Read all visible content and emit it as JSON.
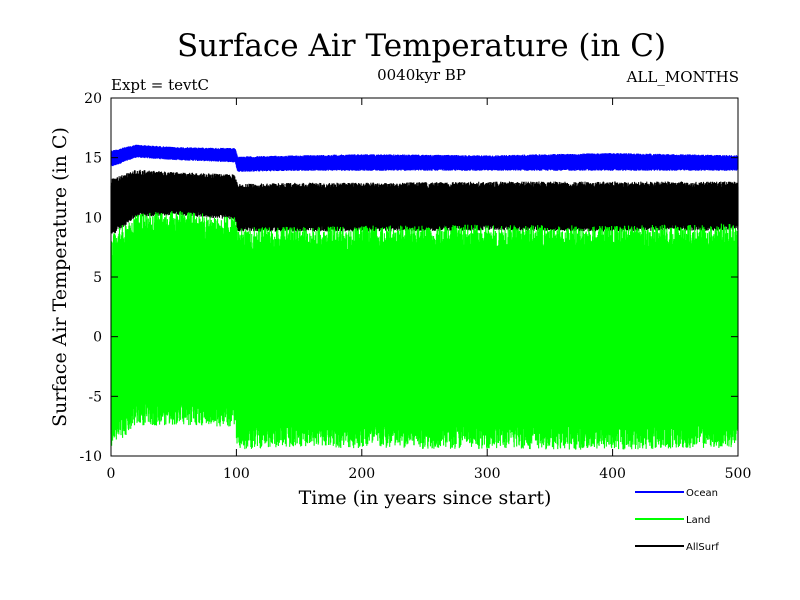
{
  "header": {
    "title": "Surface Air Temperature (in C)",
    "subtitle": "0040kyr BP",
    "expt": "Expt = tevtC",
    "months": "ALL_MONTHS"
  },
  "chart_data": {
    "type": "line",
    "title": "Surface Air Temperature (in C)",
    "xlabel": "Time (in years since start)",
    "ylabel": "Surface Air Temperature (in C)",
    "xlim": [
      0,
      500
    ],
    "ylim": [
      -10,
      20
    ],
    "xticks": [
      0,
      100,
      200,
      300,
      400,
      500
    ],
    "yticks": [
      -10,
      -5,
      0,
      5,
      10,
      15,
      20
    ],
    "grid": false,
    "legend_position": "bottom-right, outside plot",
    "series": [
      {
        "name": "Ocean",
        "color": "#0000ff",
        "x": [
          0,
          20,
          50,
          99,
          101,
          150,
          200,
          300,
          400,
          500
        ],
        "min": [
          14.2,
          15.0,
          14.8,
          14.6,
          13.8,
          13.9,
          13.9,
          13.9,
          13.9,
          13.9
        ],
        "max": [
          15.6,
          16.1,
          15.9,
          15.8,
          15.1,
          15.2,
          15.3,
          15.2,
          15.4,
          15.2
        ]
      },
      {
        "name": "Land",
        "color": "#00ff00",
        "x": [
          0,
          20,
          50,
          99,
          101,
          150,
          200,
          300,
          400,
          500
        ],
        "min": [
          -9.4,
          -7.5,
          -7.4,
          -7.6,
          -9.5,
          -9.2,
          -9.4,
          -9.4,
          -9.5,
          -9.3
        ],
        "max": [
          8.6,
          10.3,
          10.6,
          10.0,
          9.2,
          9.2,
          9.3,
          9.4,
          9.3,
          9.5
        ]
      },
      {
        "name": "AllSurf",
        "color": "#000000",
        "x": [
          0,
          20,
          50,
          99,
          101,
          150,
          200,
          300,
          400,
          500
        ],
        "min": [
          8.4,
          10.0,
          10.2,
          9.8,
          8.8,
          8.8,
          8.8,
          8.9,
          8.8,
          8.9
        ],
        "max": [
          13.2,
          14.0,
          13.8,
          13.6,
          12.8,
          12.9,
          12.9,
          13.0,
          13.0,
          13.0
        ]
      }
    ]
  }
}
